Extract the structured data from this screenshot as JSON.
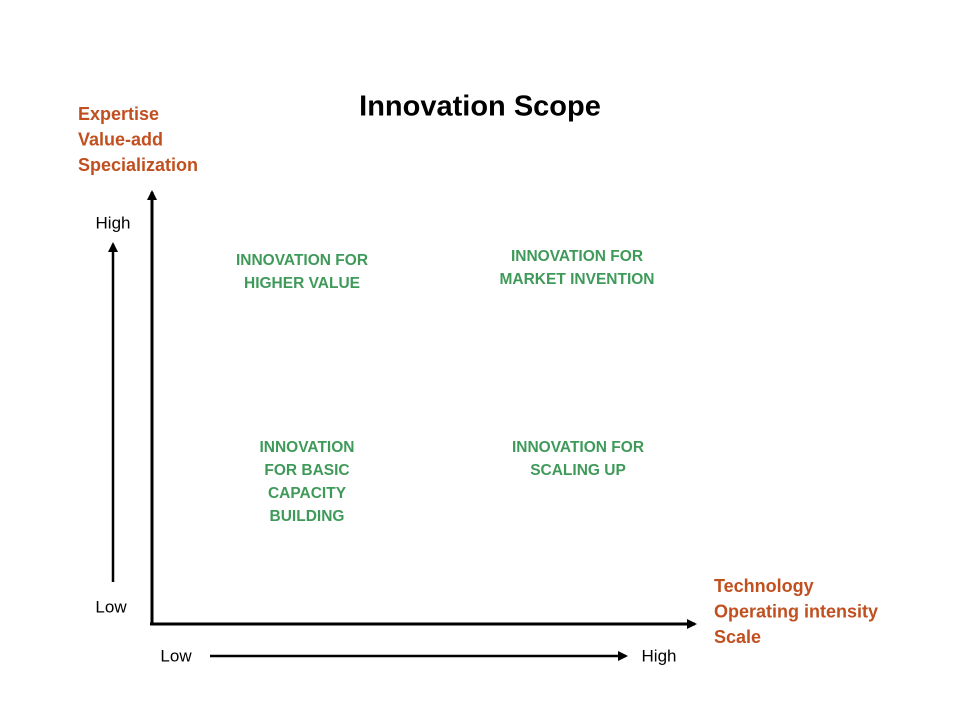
{
  "title": "Innovation Scope",
  "y_axis": {
    "label_lines": [
      "Expertise",
      "Value-add",
      "Specialization"
    ],
    "high": "High",
    "low": "Low"
  },
  "x_axis": {
    "label_lines": [
      "Technology",
      "Operating intensity",
      "Scale"
    ],
    "low": "Low",
    "high": "High"
  },
  "quadrants": [
    {
      "lines": [
        "INNOVATION FOR",
        "HIGHER VALUE"
      ]
    },
    {
      "lines": [
        "INNOVATION FOR",
        "MARKET INVENTION"
      ]
    },
    {
      "lines": [
        "INNOVATION",
        "FOR BASIC",
        "CAPACITY",
        "BUILDING"
      ]
    },
    {
      "lines": [
        "INNOVATION FOR",
        "SCALING UP"
      ]
    }
  ]
}
